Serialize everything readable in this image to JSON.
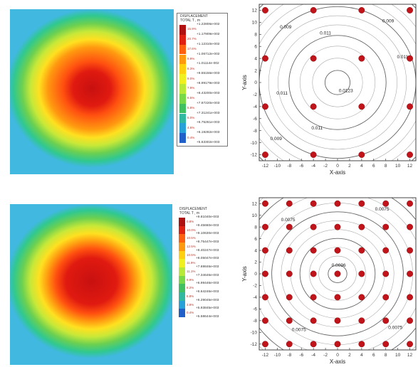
{
  "chart_data": [
    {
      "type": "heatmap",
      "panel": "top-left",
      "legend": {
        "title_line1": "DISPLACEMENT",
        "title_line2": "TOTAL T , m",
        "values": [
          "+1.22806e-002",
          "+1.17909e-002",
          "+1.12310e-002",
          "+1.06712e-002",
          "+1.01114e-002",
          "+9.55156e-003",
          "+8.99179e-003",
          "+8.43200e-003",
          "+7.87220e-003",
          "+7.31241e-003",
          "+6.75261e-003",
          "+6.19282e-003",
          "+5.63302e-003"
        ],
        "percents": [
          "15.9%",
          "20.7%",
          "17.6%",
          "9.9%",
          "8.3%",
          "9.0%",
          "7.9%",
          "6.5%",
          "5.8%",
          "5.0%",
          "4.6%",
          "0.4%"
        ],
        "colors": [
          "#b01010",
          "#e02010",
          "#ff6010",
          "#ff9a10",
          "#ffd010",
          "#f0f020",
          "#b8e838",
          "#78d848",
          "#40c060",
          "#30b8a0",
          "#28a0d8",
          "#2060c8"
        ]
      }
    },
    {
      "type": "scatter",
      "panel": "top-right",
      "xlabel": "X-axis",
      "ylabel": "Y-axis",
      "xlim": [
        -13,
        13
      ],
      "ylim": [
        -13,
        13
      ],
      "xticks": [
        -12,
        -10,
        -8,
        -6,
        -4,
        -2,
        0,
        2,
        4,
        6,
        8,
        10,
        12
      ],
      "yticks": [
        -12,
        -10,
        -8,
        -6,
        -4,
        -2,
        0,
        2,
        4,
        6,
        8,
        10,
        12
      ],
      "points_x": [
        -12,
        -4,
        4,
        12
      ],
      "points_y": [
        -12,
        -4,
        4,
        12
      ],
      "contours": [
        {
          "label": "0.009",
          "level": 0.009
        },
        {
          "label": "0.011",
          "level": 0.011
        },
        {
          "label": "0.0123",
          "level": 0.0123
        }
      ],
      "contour_labels": [
        {
          "text": "0.009",
          "x": -8.6,
          "y": 9.0
        },
        {
          "text": "0.009",
          "x": 8.4,
          "y": 10.0
        },
        {
          "text": "0.011",
          "x": -2.0,
          "y": 8.0
        },
        {
          "text": "0.011",
          "x": 10.8,
          "y": 4.0
        },
        {
          "text": "0.011",
          "x": -9.2,
          "y": -2.0
        },
        {
          "text": "0.011",
          "x": -3.4,
          "y": -7.8
        },
        {
          "text": "0.009",
          "x": -10.2,
          "y": -9.6
        },
        {
          "text": "0.0123",
          "x": 1.4,
          "y": -1.6
        }
      ]
    },
    {
      "type": "heatmap",
      "panel": "bottom-left",
      "legend": {
        "title_line1": "DISPLACEMENT",
        "title_line2": "TOTAL T , m",
        "values": [
          "+9.81040e-003",
          "+9.45660e-003",
          "+9.10630e-003",
          "+8.75447e-003",
          "+8.40247e-003",
          "+8.05047e-003",
          "+7.69846e-003",
          "+7.34646e-003",
          "+6.99446e-003",
          "+6.64246e-003",
          "+6.29045e-003",
          "+5.93845e-003",
          "+5.58644e-003"
        ],
        "percents": [
          "0.8%",
          "10.0%",
          "10.5%",
          "12.5%",
          "10.5%",
          "11.9%",
          "11.1%",
          "9.9%",
          "8.2%",
          "6.8%",
          "3.8%",
          "0.4%"
        ],
        "colors": [
          "#b01010",
          "#e02010",
          "#ff6010",
          "#ff9a10",
          "#ffd010",
          "#f0f020",
          "#b8e838",
          "#78d848",
          "#40c060",
          "#30b8a0",
          "#28a0d8",
          "#2060c8"
        ]
      }
    },
    {
      "type": "scatter",
      "panel": "bottom-right",
      "xlabel": "X-axis",
      "ylabel": "Y-axis",
      "xlim": [
        -13,
        13
      ],
      "ylim": [
        -13,
        13
      ],
      "xticks": [
        -12,
        -10,
        -8,
        -6,
        -4,
        -2,
        0,
        2,
        4,
        6,
        8,
        10,
        12
      ],
      "yticks": [
        -12,
        -10,
        -8,
        -6,
        -4,
        -2,
        0,
        2,
        4,
        6,
        8,
        10,
        12
      ],
      "points_x": [
        -12,
        -8,
        -4,
        0,
        4,
        8,
        12
      ],
      "points_y": [
        -12,
        -8,
        -4,
        0,
        4,
        8,
        12
      ],
      "contours": [
        {
          "label": "0.0075",
          "level": 0.0075
        },
        {
          "label": "0.0096",
          "level": 0.0096
        }
      ],
      "contour_labels": [
        {
          "text": "0.0075",
          "x": 7.4,
          "y": 10.8
        },
        {
          "text": "0.0075",
          "x": -8.2,
          "y": 9.0
        },
        {
          "text": "0.0075",
          "x": 9.6,
          "y": -9.4
        },
        {
          "text": "0.0075",
          "x": -6.4,
          "y": -9.8
        },
        {
          "text": "0.0096",
          "x": 0.2,
          "y": 1.2
        }
      ]
    }
  ]
}
